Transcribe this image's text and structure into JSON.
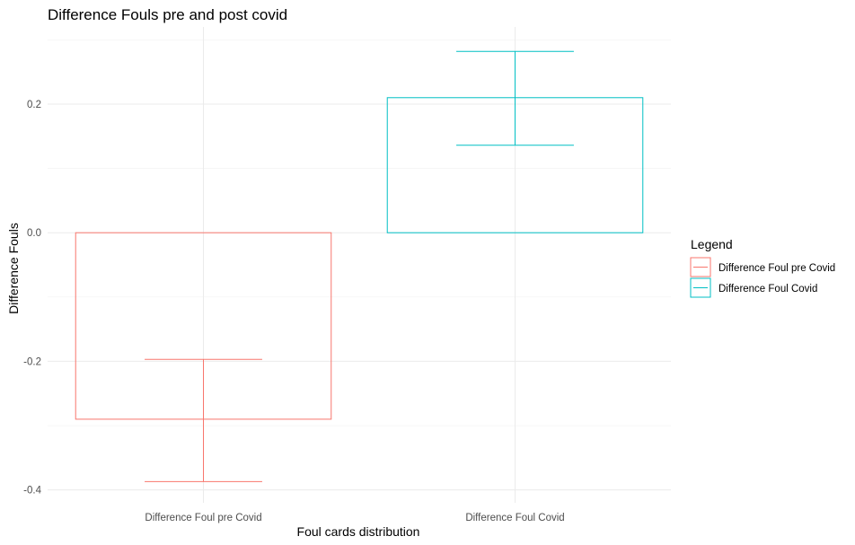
{
  "chart_data": {
    "type": "bar",
    "title": "Difference Fouls pre and post covid",
    "xlabel": "Foul cards distribution",
    "ylabel": "Difference Fouls",
    "categories": [
      "Difference Foul pre Covid",
      "Difference Foul Covid"
    ],
    "values": [
      -0.29,
      0.21
    ],
    "error_bars": [
      {
        "low": -0.387,
        "high": -0.197
      },
      {
        "low": 0.136,
        "high": 0.282
      }
    ],
    "colors": [
      "#F8766D",
      "#00BFC4"
    ],
    "ylim": [
      -0.42,
      0.32
    ],
    "yticks": [
      -0.4,
      -0.2,
      0.0,
      0.2
    ],
    "ytick_labels": [
      "-0.4",
      "-0.2",
      "0.0",
      "0.2"
    ],
    "grid": true,
    "legend": {
      "title": "Legend",
      "position": "right",
      "items": [
        "Difference Foul pre Covid",
        "Difference Foul Covid"
      ]
    }
  }
}
